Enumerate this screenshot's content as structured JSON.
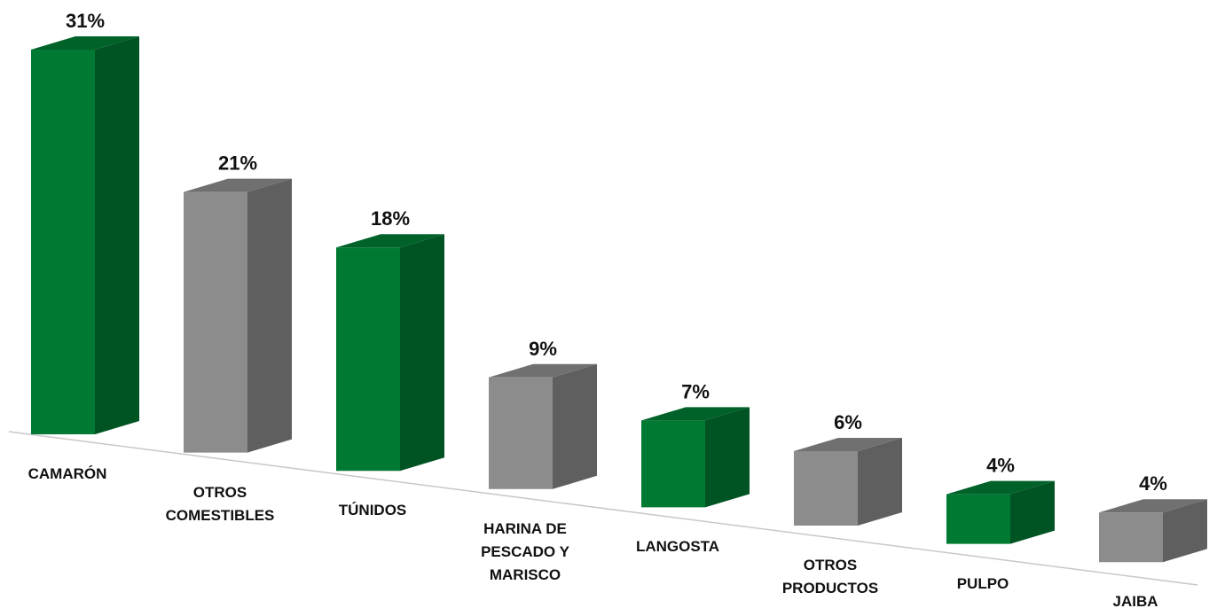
{
  "chart_data": {
    "type": "bar3d",
    "categories": [
      "CAMARÓN",
      "OTROS COMESTIBLES",
      "TÚNIDOS",
      "HARINA DE PESCADO Y MARISCO",
      "LANGOSTA",
      "OTROS PRODUCTOS",
      "PULPO",
      "JAIBA"
    ],
    "values": [
      31,
      21,
      18,
      9,
      7,
      6,
      4,
      4
    ],
    "value_labels": [
      "31%",
      "21%",
      "18%",
      "9%",
      "7%",
      "6%",
      "4%",
      "4%"
    ],
    "colors": [
      "#007a33",
      "#8c8c8c",
      "#007a33",
      "#8c8c8c",
      "#007a33",
      "#8c8c8c",
      "#007a33",
      "#8c8c8c"
    ]
  }
}
